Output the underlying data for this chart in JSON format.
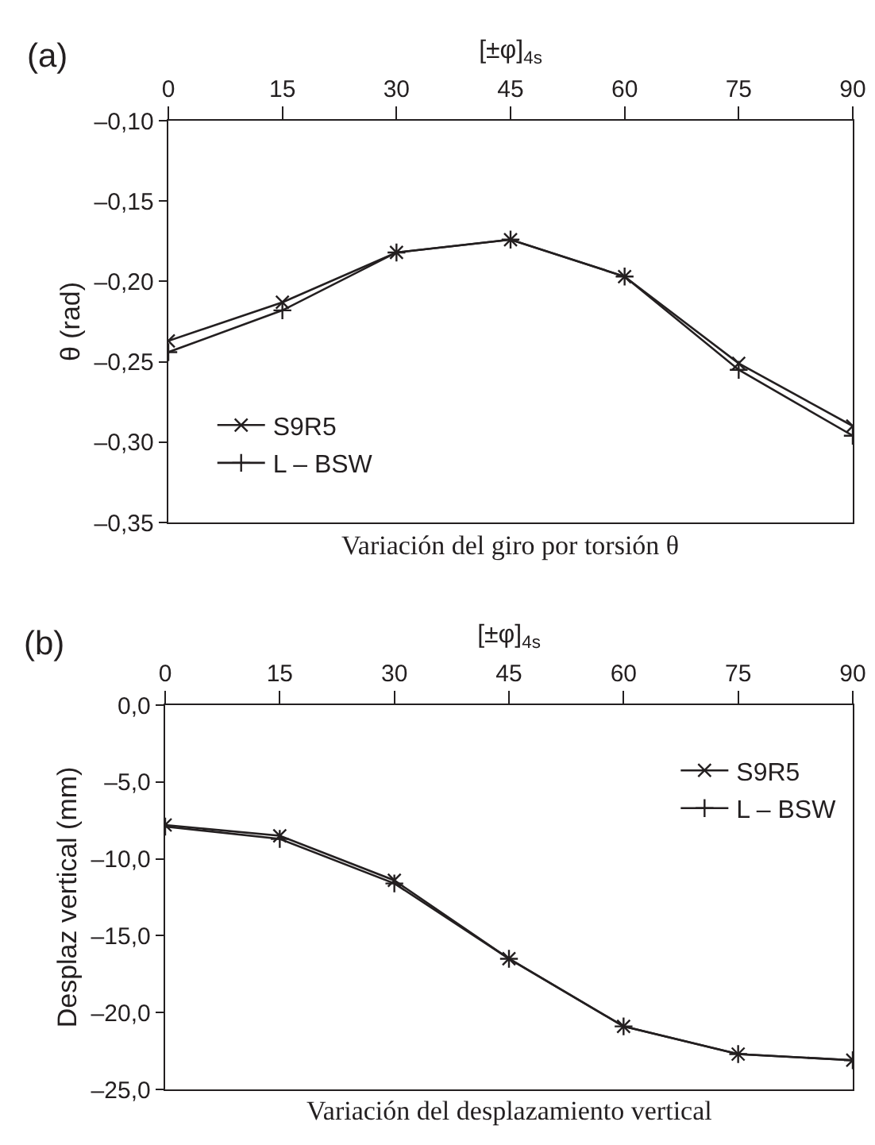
{
  "chart_data": [
    {
      "type": "line",
      "xlabel": "[±φ]$_{4s}$",
      "ylabel": "θ (rad)",
      "annotations": [
        "(a)",
        "Variación del giro por torsión θ"
      ],
      "x": [
        0,
        15,
        30,
        45,
        60,
        75,
        90
      ],
      "series": [
        {
          "name": "S9R5",
          "color": "#231f20",
          "marker": "x",
          "values": [
            -0.237,
            -0.213,
            -0.182,
            -0.174,
            -0.197,
            -0.251,
            -0.29
          ]
        },
        {
          "name": "L – BSW",
          "color": "#231f20",
          "marker": "cross",
          "values": [
            -0.244,
            -0.218,
            -0.182,
            -0.174,
            -0.197,
            -0.255,
            -0.296
          ]
        }
      ],
      "xlim": [
        0,
        90
      ],
      "xticks": [
        0,
        15,
        30,
        45,
        60,
        75,
        90
      ],
      "ylim": [
        -0.35,
        -0.1
      ],
      "yticks": [
        {
          "value": -0.1,
          "label": "–0,10"
        },
        {
          "value": -0.15,
          "label": "–0,15"
        },
        {
          "value": -0.2,
          "label": "–0,20"
        },
        {
          "value": -0.25,
          "label": "–0,25"
        },
        {
          "value": -0.3,
          "label": "–0,30"
        },
        {
          "value": -0.35,
          "label": "–0,35"
        }
      ],
      "grid": false,
      "legend": "bottom left",
      "line_style": "solid"
    },
    {
      "type": "line",
      "xlabel": "[±φ]$_{4s}$",
      "ylabel": "Desplaz vertical (mm)",
      "annotations": [
        "(b)",
        "Variación del desplazamiento vertical"
      ],
      "x": [
        0,
        15,
        30,
        45,
        60,
        75,
        90
      ],
      "series": [
        {
          "name": "S9R5",
          "color": "#231f20",
          "marker": "x",
          "values": [
            -7.8,
            -8.5,
            -11.4,
            -16.5,
            -20.9,
            -22.7,
            -23.1
          ]
        },
        {
          "name": "L – BSW",
          "color": "#231f20",
          "marker": "cross",
          "values": [
            -7.9,
            -8.7,
            -11.6,
            -16.5,
            -20.9,
            -22.7,
            -23.1
          ]
        }
      ],
      "xlim": [
        0,
        90
      ],
      "xticks": [
        0,
        15,
        30,
        45,
        60,
        75,
        90
      ],
      "ylim": [
        -25,
        0
      ],
      "yticks": [
        {
          "value": 0,
          "label": "0,0"
        },
        {
          "value": -5,
          "label": "–5,0"
        },
        {
          "value": -10,
          "label": "–10,0"
        },
        {
          "value": -15,
          "label": "–15,0"
        },
        {
          "value": -20,
          "label": "–20,0"
        },
        {
          "value": -25,
          "label": "–25,0"
        }
      ],
      "grid": false,
      "legend": "top right",
      "line_style": "solid"
    }
  ]
}
